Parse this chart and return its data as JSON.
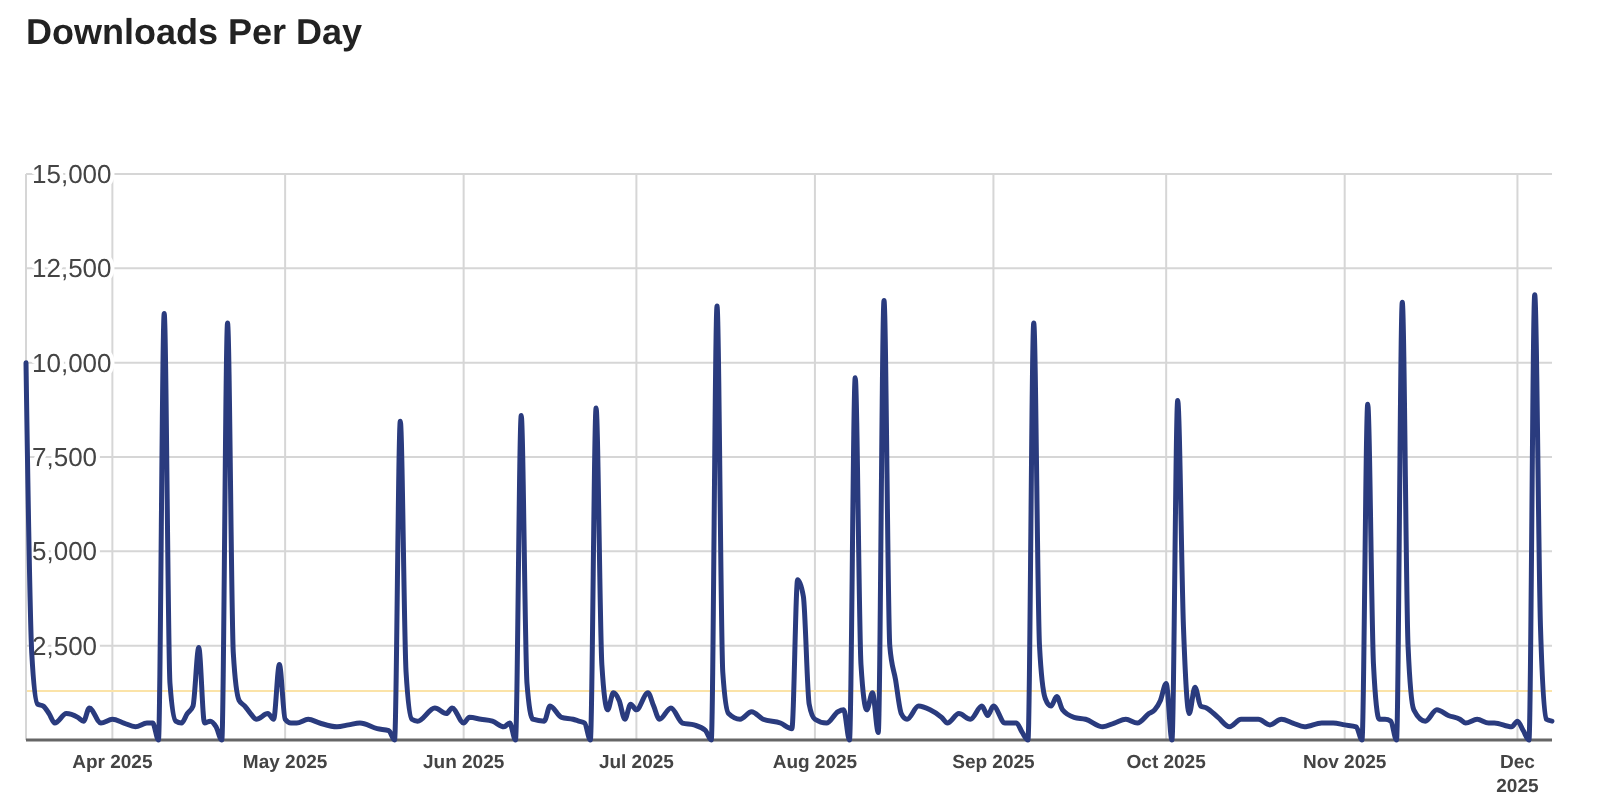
{
  "chart_data": {
    "type": "line",
    "title": "Downloads Per Day",
    "x": [
      "2025-03-17",
      "2025-03-18",
      "2025-03-19",
      "2025-03-20",
      "2025-03-21",
      "2025-03-22",
      "2025-03-24",
      "2025-03-26",
      "2025-03-27",
      "2025-03-28",
      "2025-03-30",
      "2025-04-01",
      "2025-04-03",
      "2025-04-05",
      "2025-04-07",
      "2025-04-08",
      "2025-04-09",
      "2025-04-10",
      "2025-04-11",
      "2025-04-12",
      "2025-04-13",
      "2025-04-14",
      "2025-04-15",
      "2025-04-16",
      "2025-04-17",
      "2025-04-18",
      "2025-04-19",
      "2025-04-20",
      "2025-04-21",
      "2025-04-22",
      "2025-04-23",
      "2025-04-24",
      "2025-04-25",
      "2025-04-26",
      "2025-04-28",
      "2025-04-29",
      "2025-04-30",
      "2025-05-01",
      "2025-05-02",
      "2025-05-03",
      "2025-05-05",
      "2025-05-07",
      "2025-05-10",
      "2025-05-12",
      "2025-05-14",
      "2025-05-17",
      "2025-05-19",
      "2025-05-20",
      "2025-05-21",
      "2025-05-22",
      "2025-05-23",
      "2025-05-24",
      "2025-05-27",
      "2025-05-29",
      "2025-05-30",
      "2025-06-01",
      "2025-06-02",
      "2025-06-04",
      "2025-06-06",
      "2025-06-08",
      "2025-06-09",
      "2025-06-10",
      "2025-06-11",
      "2025-06-12",
      "2025-06-13",
      "2025-06-15",
      "2025-06-16",
      "2025-06-18",
      "2025-06-20",
      "2025-06-21",
      "2025-06-22",
      "2025-06-23",
      "2025-06-24",
      "2025-06-25",
      "2025-06-26",
      "2025-06-27",
      "2025-06-28",
      "2025-06-29",
      "2025-06-30",
      "2025-07-01",
      "2025-07-03",
      "2025-07-04",
      "2025-07-05",
      "2025-07-07",
      "2025-07-09",
      "2025-07-11",
      "2025-07-13",
      "2025-07-14",
      "2025-07-15",
      "2025-07-16",
      "2025-07-17",
      "2025-07-19",
      "2025-07-21",
      "2025-07-23",
      "2025-07-26",
      "2025-07-28",
      "2025-07-29",
      "2025-07-30",
      "2025-07-31",
      "2025-08-01",
      "2025-08-03",
      "2025-08-05",
      "2025-08-06",
      "2025-08-07",
      "2025-08-08",
      "2025-08-09",
      "2025-08-10",
      "2025-08-11",
      "2025-08-12",
      "2025-08-13",
      "2025-08-14",
      "2025-08-15",
      "2025-08-16",
      "2025-08-17",
      "2025-08-19",
      "2025-08-21",
      "2025-08-23",
      "2025-08-24",
      "2025-08-26",
      "2025-08-28",
      "2025-08-30",
      "2025-08-31",
      "2025-09-01",
      "2025-09-03",
      "2025-09-05",
      "2025-09-06",
      "2025-09-07",
      "2025-09-08",
      "2025-09-09",
      "2025-09-10",
      "2025-09-11",
      "2025-09-12",
      "2025-09-13",
      "2025-09-15",
      "2025-09-17",
      "2025-09-20",
      "2025-09-22",
      "2025-09-24",
      "2025-09-26",
      "2025-09-28",
      "2025-09-29",
      "2025-09-30",
      "2025-10-01",
      "2025-10-02",
      "2025-10-03",
      "2025-10-04",
      "2025-10-05",
      "2025-10-06",
      "2025-10-07",
      "2025-10-08",
      "2025-10-10",
      "2025-10-12",
      "2025-10-14",
      "2025-10-17",
      "2025-10-19",
      "2025-10-21",
      "2025-10-23",
      "2025-10-25",
      "2025-10-28",
      "2025-10-30",
      "2025-11-01",
      "2025-11-03",
      "2025-11-04",
      "2025-11-05",
      "2025-11-06",
      "2025-11-07",
      "2025-11-08",
      "2025-11-09",
      "2025-11-10",
      "2025-11-11",
      "2025-11-12",
      "2025-11-13",
      "2025-11-15",
      "2025-11-17",
      "2025-11-19",
      "2025-11-21",
      "2025-11-22",
      "2025-11-24",
      "2025-11-26",
      "2025-11-27",
      "2025-11-30",
      "2025-12-01",
      "2025-12-02",
      "2025-12-03",
      "2025-12-04",
      "2025-12-05",
      "2025-12-06",
      "2025-12-07"
    ],
    "series": [
      {
        "color": "#2a3b7e",
        "values": [
          10000,
          2300,
          950,
          900,
          700,
          450,
          700,
          600,
          500,
          850,
          450,
          550,
          450,
          350,
          450,
          450,
          0,
          11300,
          1500,
          500,
          450,
          700,
          900,
          2450,
          450,
          500,
          350,
          0,
          11050,
          2300,
          1050,
          900,
          700,
          550,
          700,
          550,
          2000,
          550,
          450,
          450,
          550,
          450,
          350,
          400,
          450,
          300,
          250,
          0,
          8450,
          1800,
          550,
          500,
          850,
          700,
          850,
          450,
          600,
          550,
          500,
          350,
          450,
          0,
          8600,
          1500,
          550,
          500,
          900,
          600,
          550,
          500,
          450,
          0,
          8800,
          2000,
          800,
          1250,
          1050,
          550,
          950,
          800,
          1250,
          900,
          550,
          850,
          450,
          400,
          250,
          0,
          11500,
          1800,
          700,
          550,
          750,
          550,
          450,
          300,
          4250,
          3800,
          950,
          550,
          450,
          750,
          800,
          0,
          9600,
          2000,
          800,
          1250,
          200,
          11650,
          2500,
          1600,
          700,
          550,
          900,
          800,
          600,
          450,
          700,
          550,
          900,
          650,
          900,
          450,
          450,
          200,
          0,
          11050,
          2500,
          1100,
          900,
          1150,
          800,
          600,
          550,
          350,
          450,
          550,
          450,
          700,
          800,
          1050,
          1500,
          0,
          9000,
          3000,
          700,
          1400,
          900,
          850,
          600,
          350,
          550,
          550,
          400,
          550,
          450,
          350,
          450,
          450,
          400,
          350,
          0,
          8900,
          2000,
          550,
          550,
          500,
          0,
          11600,
          2500,
          800,
          500,
          800,
          650,
          550,
          450,
          550,
          450,
          450,
          350,
          500,
          250,
          0,
          11800,
          3000,
          550,
          500
        ]
      }
    ],
    "xlim": [
      "2025-03-17",
      "2025-12-07"
    ],
    "xticks": [
      {
        "value": "2025-04-01",
        "label": "Apr 2025"
      },
      {
        "value": "2025-05-01",
        "label": "May 2025"
      },
      {
        "value": "2025-06-01",
        "label": "Jun 2025"
      },
      {
        "value": "2025-07-01",
        "label": "Jul 2025"
      },
      {
        "value": "2025-08-01",
        "label": "Aug 2025"
      },
      {
        "value": "2025-09-01",
        "label": "Sep 2025"
      },
      {
        "value": "2025-10-01",
        "label": "Oct 2025"
      },
      {
        "value": "2025-11-01",
        "label": "Nov 2025"
      },
      {
        "value": "2025-12-01",
        "label": "Dec 2025"
      }
    ],
    "ylim": [
      0,
      15000
    ],
    "yticks": [
      {
        "value": 0,
        "label": null
      },
      {
        "value": 2500,
        "label": "2,500"
      },
      {
        "value": 5000,
        "label": "5,000"
      },
      {
        "value": 7500,
        "label": "7,500"
      },
      {
        "value": 10000,
        "label": "10,000"
      },
      {
        "value": 12500,
        "label": "12,500"
      },
      {
        "value": 15000,
        "label": "15,000"
      }
    ],
    "grid": true,
    "ref_lines": [
      {
        "axis": "y",
        "value": 1300,
        "color": "#fbe3a8"
      }
    ]
  }
}
